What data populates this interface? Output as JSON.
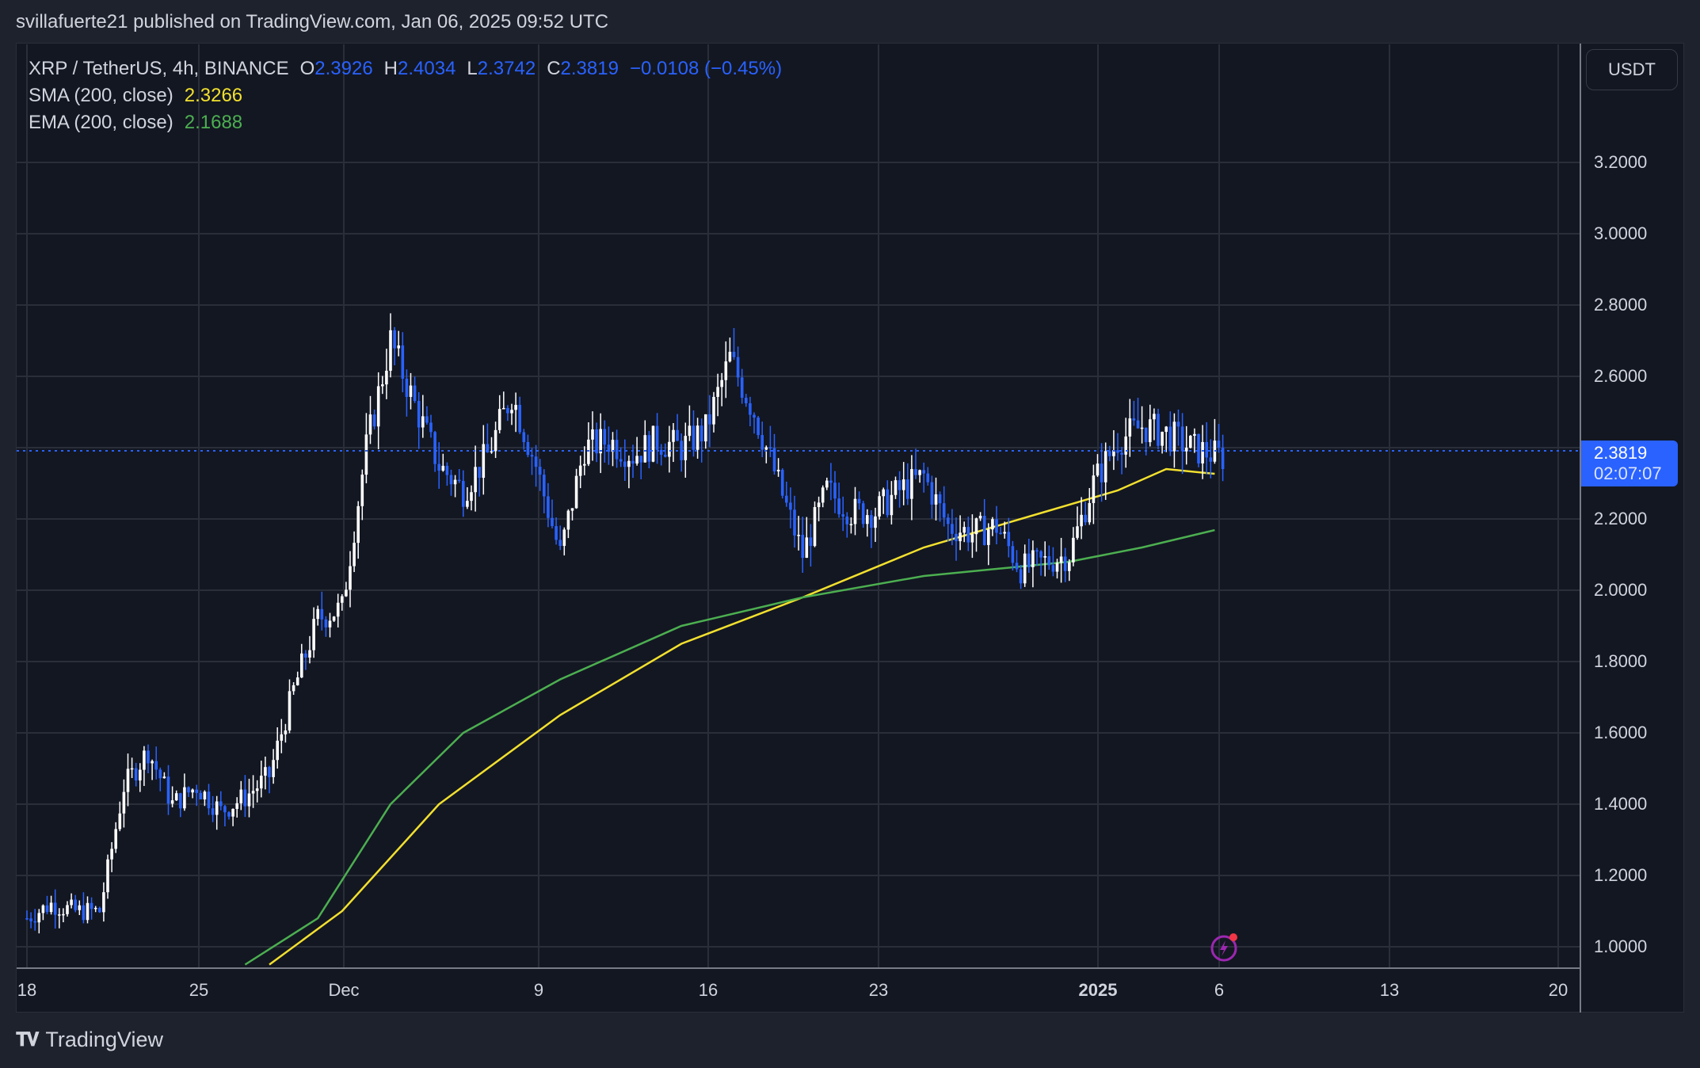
{
  "header": {
    "published_by": "svillafuerte21 published on TradingView.com, Jan 06, 2025 09:52 UTC"
  },
  "legend": {
    "symbol": "XRP / TetherUS, 4h, BINANCE",
    "open_key": "O",
    "open": "2.3926",
    "high_key": "H",
    "high": "2.4034",
    "low_key": "L",
    "low": "2.3742",
    "close_key": "C",
    "close": "2.3819",
    "change": "−0.0108 (−0.45%)",
    "sma_label": "SMA (200, close)",
    "sma_value": "2.3266",
    "ema_label": "EMA (200, close)",
    "ema_value": "2.1688"
  },
  "price_axis": {
    "currency": "USDT",
    "ticks": [
      "3.2000",
      "3.0000",
      "2.8000",
      "2.6000",
      "2.4000",
      "2.2000",
      "2.0000",
      "1.8000",
      "1.6000",
      "1.4000",
      "1.2000",
      "1.0000"
    ],
    "current_price": "2.3819",
    "countdown": "02:07:07"
  },
  "time_axis": {
    "ticks": [
      {
        "label": "18",
        "bold": false
      },
      {
        "label": "25",
        "bold": false
      },
      {
        "label": "Dec",
        "bold": false
      },
      {
        "label": "9",
        "bold": false
      },
      {
        "label": "16",
        "bold": false
      },
      {
        "label": "23",
        "bold": false
      },
      {
        "label": "2025",
        "bold": true
      },
      {
        "label": "6",
        "bold": false
      },
      {
        "label": "13",
        "bold": false
      },
      {
        "label": "20",
        "bold": false
      }
    ]
  },
  "colors": {
    "up": "#ffffff",
    "down": "#2962ff",
    "sma": "#f2e02e",
    "ema": "#4caf50",
    "grid": "#2a2e39",
    "background": "#131722",
    "accent": "#2962ff",
    "event_icon": "#9c27b0"
  },
  "icons": {
    "event": "lightning-event-icon",
    "brand": "tradingview-logo-icon"
  },
  "footer": {
    "brand": "TradingView"
  },
  "chart_data": {
    "type": "candlestick",
    "title": "XRP / TetherUS, 4h, BINANCE",
    "xlabel": "",
    "ylabel": "USDT",
    "ylim": [
      0.95,
      3.3
    ],
    "grid": true,
    "legend_position": "top-left",
    "x_ticks": [
      "18",
      "25",
      "Dec",
      "9",
      "16",
      "23",
      "2025",
      "6",
      "13",
      "20"
    ],
    "y_ticks": [
      1.0,
      1.2,
      1.4,
      1.6,
      1.8,
      2.0,
      2.2,
      2.4,
      2.6,
      2.8,
      3.0,
      3.2
    ],
    "last": {
      "open": 2.3926,
      "high": 2.4034,
      "low": 2.3742,
      "close": 2.3819,
      "change": -0.0108,
      "change_pct": -0.45
    },
    "close_path_daily": {
      "dates": [
        "Nov 18",
        "Nov 19",
        "Nov 20",
        "Nov 21",
        "Nov 22",
        "Nov 23",
        "Nov 24",
        "Nov 25",
        "Nov 26",
        "Nov 27",
        "Nov 28",
        "Nov 29",
        "Nov 30",
        "Dec 1",
        "Dec 2",
        "Dec 3",
        "Dec 4",
        "Dec 5",
        "Dec 6",
        "Dec 7",
        "Dec 8",
        "Dec 9",
        "Dec 10",
        "Dec 11",
        "Dec 12",
        "Dec 13",
        "Dec 14",
        "Dec 15",
        "Dec 16",
        "Dec 17",
        "Dec 18",
        "Dec 19",
        "Dec 20",
        "Dec 21",
        "Dec 22",
        "Dec 23",
        "Dec 24",
        "Dec 25",
        "Dec 26",
        "Dec 27",
        "Dec 28",
        "Dec 29",
        "Dec 30",
        "Dec 31",
        "Jan 1",
        "Jan 2",
        "Jan 3",
        "Jan 4",
        "Jan 5",
        "Jan 6"
      ],
      "close": [
        1.08,
        1.12,
        1.1,
        1.1,
        1.45,
        1.55,
        1.4,
        1.45,
        1.38,
        1.42,
        1.48,
        1.72,
        1.92,
        1.95,
        2.4,
        2.7,
        2.52,
        2.35,
        2.28,
        2.38,
        2.55,
        2.35,
        2.1,
        2.4,
        2.42,
        2.38,
        2.42,
        2.4,
        2.45,
        2.65,
        2.5,
        2.3,
        2.1,
        2.28,
        2.22,
        2.22,
        2.28,
        2.32,
        2.18,
        2.16,
        2.18,
        2.06,
        2.08,
        2.1,
        2.3,
        2.42,
        2.46,
        2.44,
        2.4,
        2.38
      ]
    },
    "series": [
      {
        "name": "SMA (200, close)",
        "color": "#f2e02e",
        "points": [
          [
            "Nov 28",
            0.95
          ],
          [
            "Dec 1",
            1.1
          ],
          [
            "Dec 5",
            1.4
          ],
          [
            "Dec 10",
            1.65
          ],
          [
            "Dec 15",
            1.85
          ],
          [
            "Dec 20",
            1.98
          ],
          [
            "Dec 25",
            2.12
          ],
          [
            "Dec 30",
            2.22
          ],
          [
            "Jan 2",
            2.28
          ],
          [
            "Jan 4",
            2.34
          ],
          [
            "Jan 6",
            2.3266
          ]
        ]
      },
      {
        "name": "EMA (200, close)",
        "color": "#4caf50",
        "points": [
          [
            "Nov 27",
            0.95
          ],
          [
            "Nov 30",
            1.08
          ],
          [
            "Dec 3",
            1.4
          ],
          [
            "Dec 6",
            1.6
          ],
          [
            "Dec 10",
            1.75
          ],
          [
            "Dec 15",
            1.9
          ],
          [
            "Dec 20",
            1.98
          ],
          [
            "Dec 25",
            2.04
          ],
          [
            "Dec 31",
            2.08
          ],
          [
            "Jan 3",
            2.12
          ],
          [
            "Jan 6",
            2.1688
          ]
        ]
      }
    ]
  }
}
